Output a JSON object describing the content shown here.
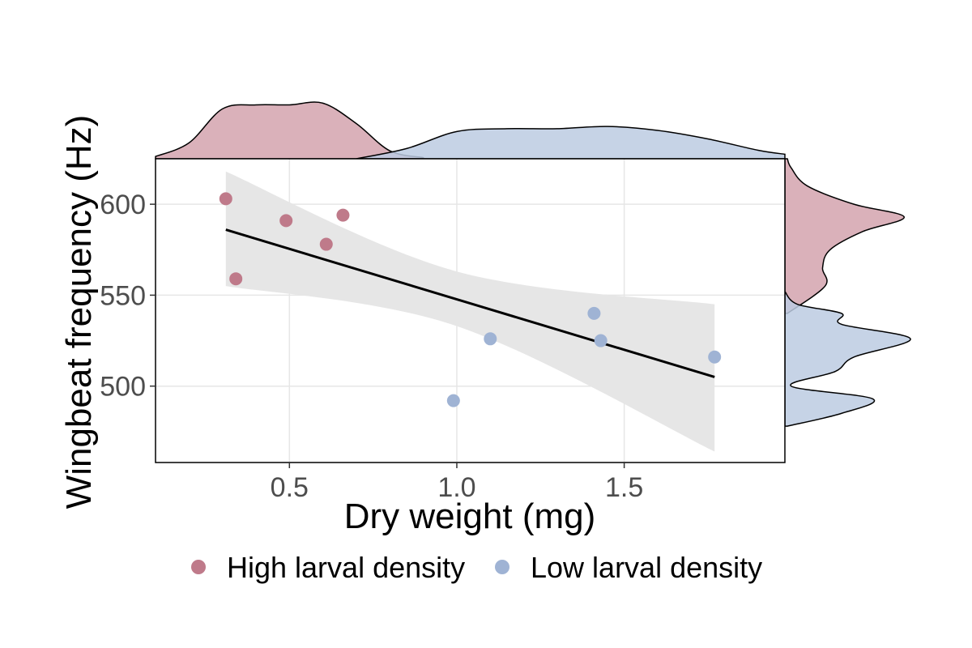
{
  "chart_data": {
    "type": "scatter",
    "title": "",
    "xlabel": "Dry weight (mg)",
    "ylabel": "Wingbeat frequency (Hz)",
    "xlim": [
      0.1,
      1.98
    ],
    "ylim": [
      458,
      625
    ],
    "x_ticks": [
      0.5,
      1.0,
      1.5
    ],
    "x_tick_labels": [
      "0.5",
      "1.0",
      "1.5"
    ],
    "y_ticks": [
      500,
      550,
      600
    ],
    "y_tick_labels": [
      "500",
      "550",
      "600"
    ],
    "grid": true,
    "legend_position": "bottom",
    "series": [
      {
        "name": "High larval density",
        "color": "#bf7a8a",
        "fill_color": "#d4a3ae",
        "points": [
          {
            "x": 0.31,
            "y": 603
          },
          {
            "x": 0.34,
            "y": 559
          },
          {
            "x": 0.49,
            "y": 591
          },
          {
            "x": 0.61,
            "y": 578
          },
          {
            "x": 0.66,
            "y": 594
          }
        ]
      },
      {
        "name": "Low larval density",
        "color": "#9fb3d4",
        "fill_color": "#bccbe2",
        "points": [
          {
            "x": 0.99,
            "y": 492
          },
          {
            "x": 1.1,
            "y": 526
          },
          {
            "x": 1.41,
            "y": 540
          },
          {
            "x": 1.43,
            "y": 525
          },
          {
            "x": 1.77,
            "y": 516
          }
        ]
      }
    ],
    "regression": {
      "x_start": 0.31,
      "x_end": 1.77,
      "y_start": 586,
      "y_end": 505,
      "ci_upper": [
        {
          "x": 0.31,
          "y": 618
        },
        {
          "x": 1.0,
          "y": 563
        },
        {
          "x": 1.77,
          "y": 545
        }
      ],
      "ci_lower": [
        {
          "x": 0.31,
          "y": 555
        },
        {
          "x": 1.0,
          "y": 533
        },
        {
          "x": 1.77,
          "y": 464
        }
      ],
      "line_color": "#000000",
      "band_color": "#e6e6e6"
    },
    "x_marginal_density": [
      {
        "series": "High larval density",
        "x": [
          0.1,
          0.2,
          0.3,
          0.4,
          0.5,
          0.6,
          0.7,
          0.8,
          0.9
        ],
        "density": [
          0.04,
          0.28,
          0.88,
          0.95,
          0.95,
          0.98,
          0.62,
          0.14,
          0.02
        ]
      },
      {
        "series": "Low larval density",
        "x": [
          0.7,
          0.85,
          1.0,
          1.15,
          1.3,
          1.45,
          1.6,
          1.75,
          1.9,
          1.98
        ],
        "density": [
          0.0,
          0.18,
          0.48,
          0.53,
          0.53,
          0.57,
          0.5,
          0.35,
          0.15,
          0.08
        ]
      }
    ],
    "y_marginal_density": [
      {
        "series": "High larval density",
        "y": [
          540,
          555,
          565,
          575,
          585,
          593,
          600,
          610,
          620,
          625
        ],
        "density": [
          0.02,
          0.32,
          0.3,
          0.36,
          0.62,
          0.95,
          0.55,
          0.18,
          0.05,
          0.02
        ]
      },
      {
        "series": "Low larval density",
        "y": [
          478,
          485,
          493,
          500,
          508,
          516,
          526,
          534,
          540,
          545,
          552
        ],
        "density": [
          0.02,
          0.45,
          0.7,
          0.05,
          0.4,
          0.55,
          1.0,
          0.45,
          0.45,
          0.1,
          0.0
        ]
      }
    ]
  }
}
